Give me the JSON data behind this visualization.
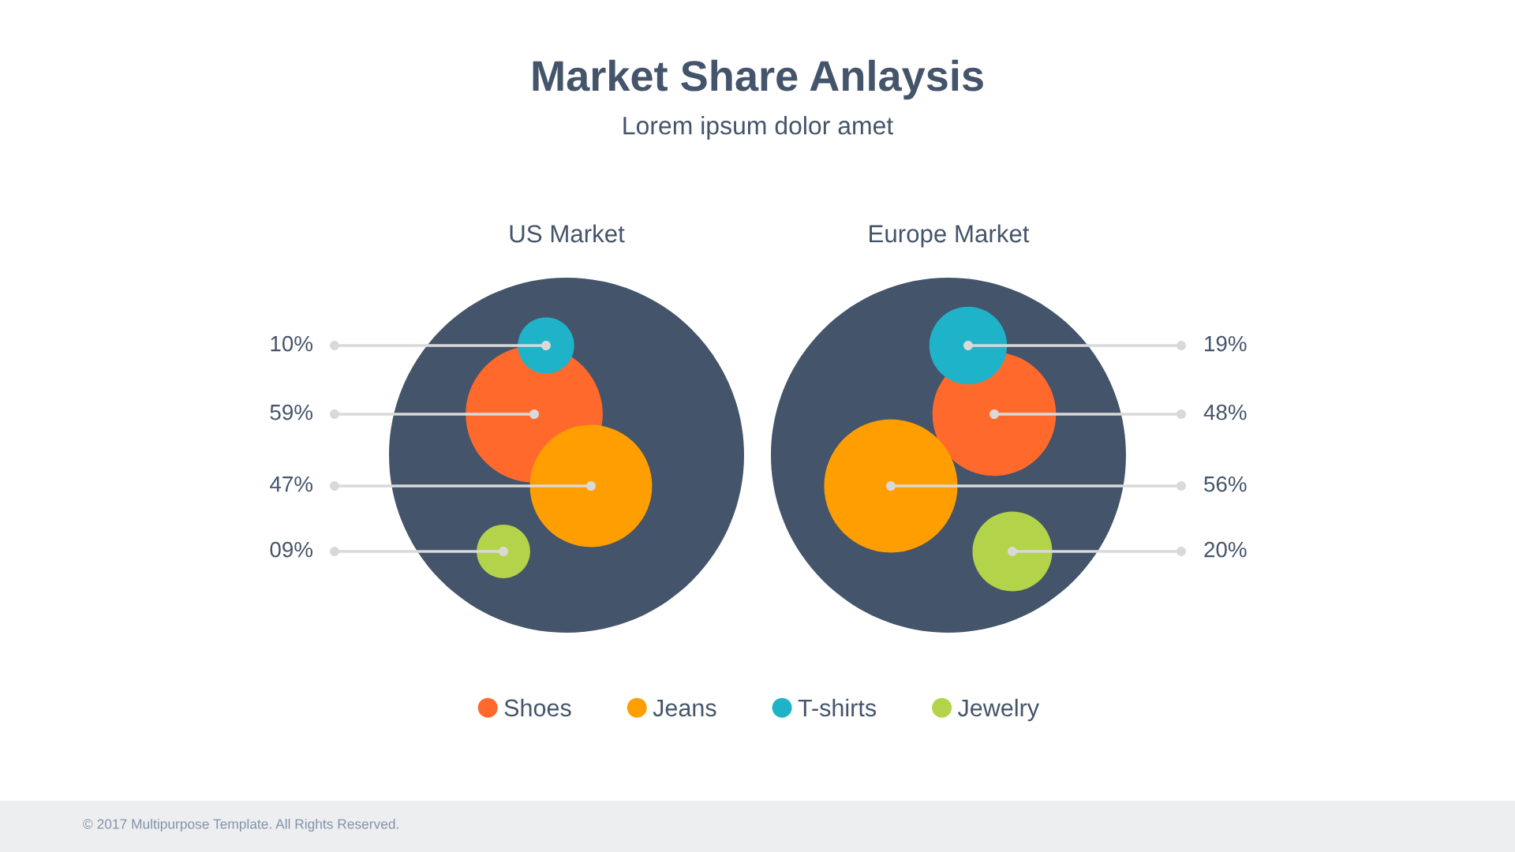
{
  "chart_data": {
    "type": "other",
    "title": "Market Share Anlaysis",
    "subtitle": "Lorem ipsum dolor amet",
    "categories": [
      "US Market",
      "Europe Market"
    ],
    "colors": [
      "#44546a",
      "#44546a"
    ],
    "series": [
      {
        "name": "Shoes",
        "color": "#ff6a2c",
        "values": [
          59,
          48
        ],
        "value_labels": [
          "59%",
          "48%"
        ]
      },
      {
        "name": "Jeans",
        "color": "#ff9e00",
        "values": [
          47,
          56
        ],
        "value_labels": [
          "47%",
          "56%"
        ]
      },
      {
        "name": "T-shirts",
        "color": "#1fb3c9",
        "values": [
          10,
          19
        ],
        "value_labels": [
          "10%",
          "19%"
        ]
      },
      {
        "name": "Jewelry",
        "color": "#b3d34a",
        "values": [
          9,
          20
        ],
        "value_labels": [
          "09%",
          "20%"
        ]
      }
    ],
    "legend": "bottom",
    "annotations": [
      "© 2017 Multipurpose Template. All Rights Reserved."
    ]
  }
}
